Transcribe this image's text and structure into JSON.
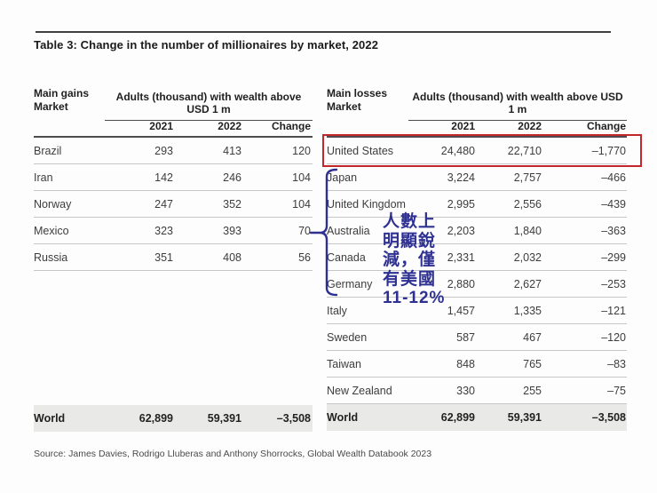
{
  "page": {
    "title": "Table 3: Change in the number of millionaires by market, 2022",
    "source": "Source: James Davies, Rodrigo Lluberas and Anthony Shorrocks, Global Wealth Databook 2023"
  },
  "tables": [
    {
      "id": "gains",
      "market_header": "Main gains\nMarket",
      "group_header": "Adults (thousand) with wealth above USD 1 m",
      "columns": [
        "2021",
        "2022",
        "Change"
      ],
      "rows": [
        {
          "market": "Brazil",
          "y2021": "293",
          "y2022": "413",
          "change": "120"
        },
        {
          "market": "Iran",
          "y2021": "142",
          "y2022": "246",
          "change": "104"
        },
        {
          "market": "Norway",
          "y2021": "247",
          "y2022": "352",
          "change": "104"
        },
        {
          "market": "Mexico",
          "y2021": "323",
          "y2022": "393",
          "change": "70"
        },
        {
          "market": "Russia",
          "y2021": "351",
          "y2022": "408",
          "change": "56"
        }
      ],
      "world": {
        "market": "World",
        "y2021": "62,899",
        "y2022": "59,391",
        "change": "–3,508"
      }
    },
    {
      "id": "losses",
      "market_header": "Main losses\nMarket",
      "group_header": "Adults (thousand) with wealth above USD 1 m",
      "columns": [
        "2021",
        "2022",
        "Change"
      ],
      "rows": [
        {
          "market": "United States",
          "y2021": "24,480",
          "y2022": "22,710",
          "change": "–1,770"
        },
        {
          "market": "Japan",
          "y2021": "3,224",
          "y2022": "2,757",
          "change": "–466"
        },
        {
          "market": "United Kingdom",
          "y2021": "2,995",
          "y2022": "2,556",
          "change": "–439"
        },
        {
          "market": "Australia",
          "y2021": "2,203",
          "y2022": "1,840",
          "change": "–363"
        },
        {
          "market": "Canada",
          "y2021": "2,331",
          "y2022": "2,032",
          "change": "–299"
        },
        {
          "market": "Germany",
          "y2021": "2,880",
          "y2022": "2,627",
          "change": "–253"
        },
        {
          "market": "Italy",
          "y2021": "1,457",
          "y2022": "1,335",
          "change": "–121"
        },
        {
          "market": "Sweden",
          "y2021": "587",
          "y2022": "467",
          "change": "–120"
        },
        {
          "market": "Taiwan",
          "y2021": "848",
          "y2022": "765",
          "change": "–83"
        },
        {
          "market": "New Zealand",
          "y2021": "330",
          "y2022": "255",
          "change": "–75"
        }
      ],
      "world": {
        "market": "World",
        "y2021": "62,899",
        "y2022": "59,391",
        "change": "–3,508"
      }
    }
  ],
  "annotation": {
    "note_text": "人數上\n明顯銳\n減，僅\n有美國\n11-12%",
    "accent_color": "#2e3192",
    "highlight_color": "#c1272d",
    "highlighted_row": "United States",
    "bracketed_rows": [
      "Japan",
      "United Kingdom",
      "Australia",
      "Canada",
      "Germany"
    ]
  }
}
